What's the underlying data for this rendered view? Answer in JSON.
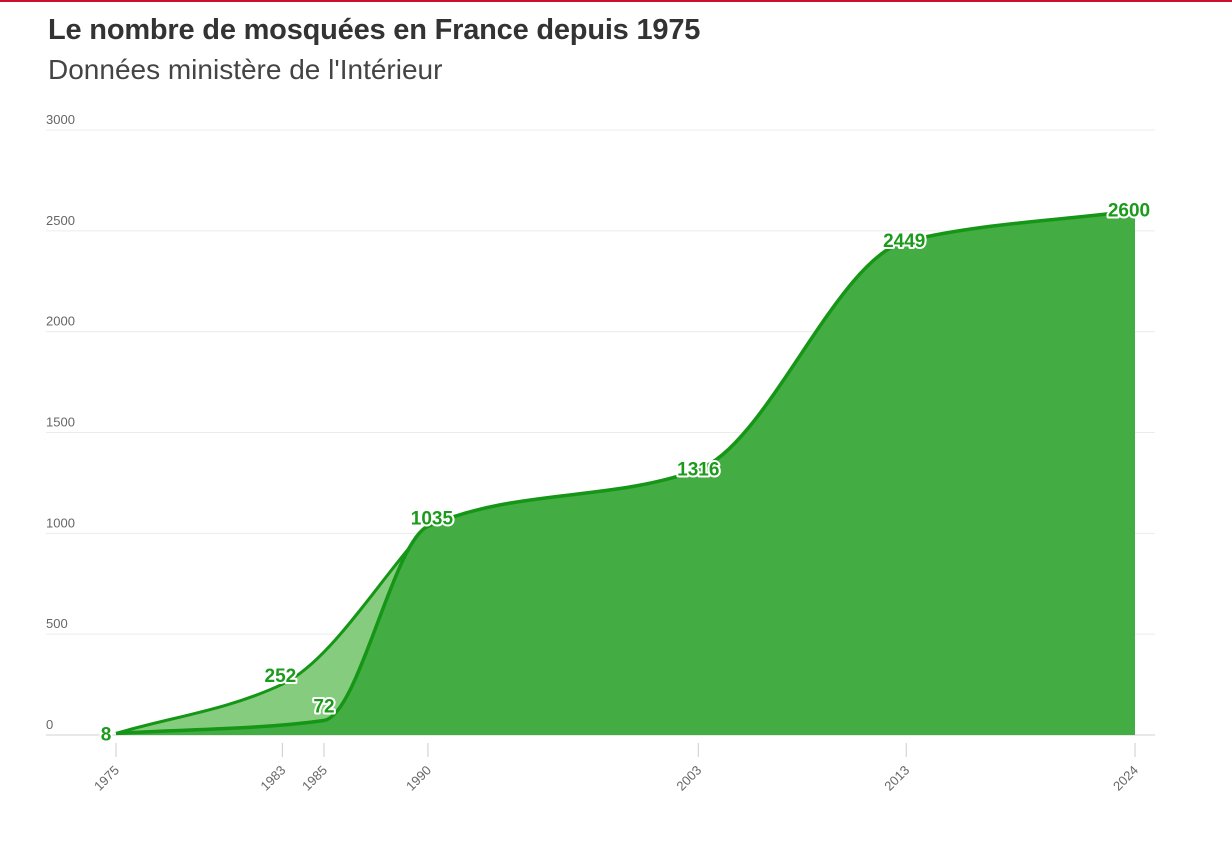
{
  "header": {
    "title": "Le nombre de mosquées en France depuis 1975",
    "subtitle": "Données ministère de l'Intérieur"
  },
  "colors": {
    "accent_rule": "#c9102e",
    "main_fill": "#43ac43",
    "main_line": "#169616",
    "alt_fill": "#86cc7e",
    "label": "#1b9a1b"
  },
  "chart_data": {
    "type": "area",
    "title": "Le nombre de mosquées en France depuis 1975",
    "subtitle": "Données ministère de l'Intérieur",
    "xlabel": "",
    "ylabel": "",
    "ylim": [
      0,
      3000
    ],
    "yticks": [
      "0",
      "500",
      "1000",
      "1500",
      "2000",
      "2500",
      "3000"
    ],
    "xticks": [
      "1975",
      "1983",
      "1985",
      "1990",
      "2003",
      "2013",
      "2024"
    ],
    "grid": true,
    "series": [
      {
        "points": [
          [
            1975,
            8
          ],
          [
            1985,
            72
          ],
          [
            1990,
            1035
          ],
          [
            2003,
            1316
          ],
          [
            2013,
            2449
          ],
          [
            2024,
            2600
          ]
        ],
        "labels": [
          "8",
          "72",
          "1035",
          "1316",
          "2449",
          "2600"
        ]
      },
      {
        "points": [
          [
            1975,
            8
          ],
          [
            1983,
            252
          ],
          [
            1990,
            1035
          ]
        ],
        "labels": [
          "",
          "252",
          ""
        ]
      }
    ]
  }
}
